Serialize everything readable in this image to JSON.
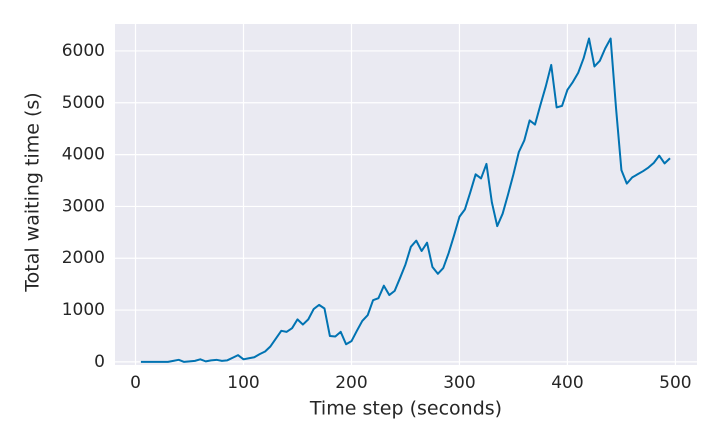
{
  "chart_data": {
    "type": "line",
    "xlabel": "Time step (seconds)",
    "ylabel": "Total waiting time (s)",
    "x": [
      5,
      10,
      15,
      20,
      25,
      30,
      35,
      40,
      45,
      50,
      55,
      60,
      65,
      70,
      75,
      80,
      85,
      90,
      95,
      100,
      105,
      110,
      115,
      120,
      125,
      130,
      135,
      140,
      145,
      150,
      155,
      160,
      165,
      170,
      175,
      180,
      185,
      190,
      195,
      200,
      205,
      210,
      215,
      220,
      225,
      230,
      235,
      240,
      245,
      250,
      255,
      260,
      265,
      270,
      275,
      280,
      285,
      290,
      295,
      300,
      305,
      310,
      315,
      320,
      325,
      330,
      335,
      340,
      345,
      350,
      355,
      360,
      365,
      370,
      375,
      380,
      385,
      390,
      395,
      400,
      405,
      410,
      415,
      420,
      425,
      430,
      435,
      440,
      445,
      450,
      455,
      460,
      465,
      470,
      475,
      480,
      485,
      490,
      495
    ],
    "series": [
      {
        "name": "Total waiting time",
        "color": "#0173b2",
        "values": [
          0,
          0,
          0,
          0,
          0,
          0,
          20,
          40,
          0,
          10,
          20,
          50,
          10,
          30,
          40,
          20,
          30,
          80,
          130,
          50,
          70,
          90,
          150,
          200,
          300,
          450,
          600,
          580,
          650,
          820,
          720,
          820,
          1020,
          1100,
          1030,
          500,
          490,
          580,
          340,
          400,
          600,
          790,
          900,
          1190,
          1230,
          1470,
          1290,
          1370,
          1620,
          1880,
          2220,
          2340,
          2140,
          2300,
          1830,
          1700,
          1810,
          2100,
          2440,
          2800,
          2940,
          3270,
          3620,
          3540,
          3820,
          3080,
          2620,
          2860,
          3230,
          3620,
          4050,
          4270,
          4660,
          4580,
          4960,
          5320,
          5730,
          4910,
          4940,
          5250,
          5400,
          5580,
          5860,
          6240,
          5700,
          5810,
          6050,
          6240,
          4900,
          3700,
          3440,
          3560,
          3620,
          3680,
          3750,
          3840,
          3980,
          3830,
          3930
        ]
      }
    ],
    "xlim": [
      -19,
      520
    ],
    "ylim": [
      -60,
      6520
    ],
    "xticks": [
      0,
      100,
      200,
      300,
      400,
      500
    ],
    "yticks": [
      0,
      1000,
      2000,
      3000,
      4000,
      5000,
      6000
    ],
    "grid": true
  }
}
